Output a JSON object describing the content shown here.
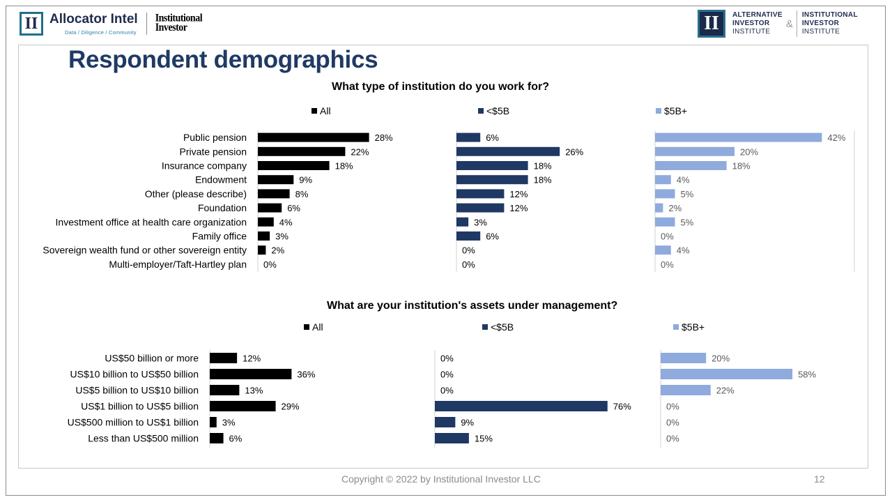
{
  "header": {
    "left_brand_name": "Allocator Intel",
    "left_brand_tagline": "Data / Diligence / Community",
    "left_logo_letters": "II",
    "partner_line1": "Institutional",
    "partner_line2": "Investor",
    "right_logo_letters": "II",
    "right_org1_line1": "ALTERNATIVE",
    "right_org1_line2": "INVESTOR",
    "right_org1_line3": "INSTITUTE",
    "right_amp": "&",
    "right_org2_line1": "INSTITUTIONAL",
    "right_org2_line2": "INVESTOR",
    "right_org2_line3": "INSTITUTE"
  },
  "page_title": "Respondent demographics",
  "footer": {
    "copyright": "Copyright © 2022 by Institutional Investor LLC",
    "page_number": "12"
  },
  "colors": {
    "all": "#000000",
    "under5b": "#1f3864",
    "over5b": "#8faadc",
    "title": "#1f3a64"
  },
  "chart_data": [
    {
      "type": "bar",
      "orientation": "horizontal",
      "title": "What type of institution do you work for?",
      "categories": [
        "Public pension",
        "Private pension",
        "Insurance company",
        "Endowment",
        "Other (please describe)",
        "Foundation",
        "Investment office at health care organization",
        "Family office",
        "Sovereign wealth fund or other sovereign entity",
        "Multi-employer/Taft-Hartley plan"
      ],
      "series": [
        {
          "name": "All",
          "values": [
            28,
            22,
            18,
            9,
            8,
            6,
            4,
            3,
            2,
            0
          ],
          "labels": [
            "28%",
            "22%",
            "18%",
            "9%",
            "8%",
            "6%",
            "4%",
            "3%",
            "2%",
            "0%"
          ]
        },
        {
          "name": "<$5B",
          "values": [
            6,
            26,
            18,
            18,
            12,
            12,
            3,
            6,
            0,
            0
          ],
          "labels": [
            "6%",
            "26%",
            "18%",
            "18%",
            "12%",
            "12%",
            "3%",
            "6%",
            "0%",
            "0%"
          ]
        },
        {
          "name": "$5B+",
          "values": [
            42,
            20,
            18,
            4,
            5,
            2,
            5,
            0,
            4,
            0
          ],
          "labels": [
            "42%",
            "20%",
            "18%",
            "4%",
            "5%",
            "2%",
            "5%",
            "0%",
            "4%",
            "0%"
          ]
        }
      ]
    },
    {
      "type": "bar",
      "orientation": "horizontal",
      "title": "What are your institution's assets under management?",
      "categories": [
        "US$50 billion or more",
        "US$10 billion to US$50 billion",
        "US$5 billion to US$10 billion",
        "US$1 billion to US$5 billion",
        "US$500 million to US$1 billion",
        "Less than US$500 million"
      ],
      "series": [
        {
          "name": "All",
          "values": [
            12,
            36,
            13,
            29,
            3,
            6
          ],
          "labels": [
            "12%",
            "36%",
            "13%",
            "29%",
            "3%",
            "6%"
          ]
        },
        {
          "name": "<$5B",
          "values": [
            0,
            0,
            0,
            76,
            9,
            15
          ],
          "labels": [
            "0%",
            "0%",
            "0%",
            "76%",
            "9%",
            "15%"
          ]
        },
        {
          "name": "$5B+",
          "values": [
            20,
            58,
            22,
            0,
            0,
            0
          ],
          "labels": [
            "20%",
            "58%",
            "22%",
            "0%",
            "0%",
            "0%"
          ]
        }
      ]
    }
  ]
}
